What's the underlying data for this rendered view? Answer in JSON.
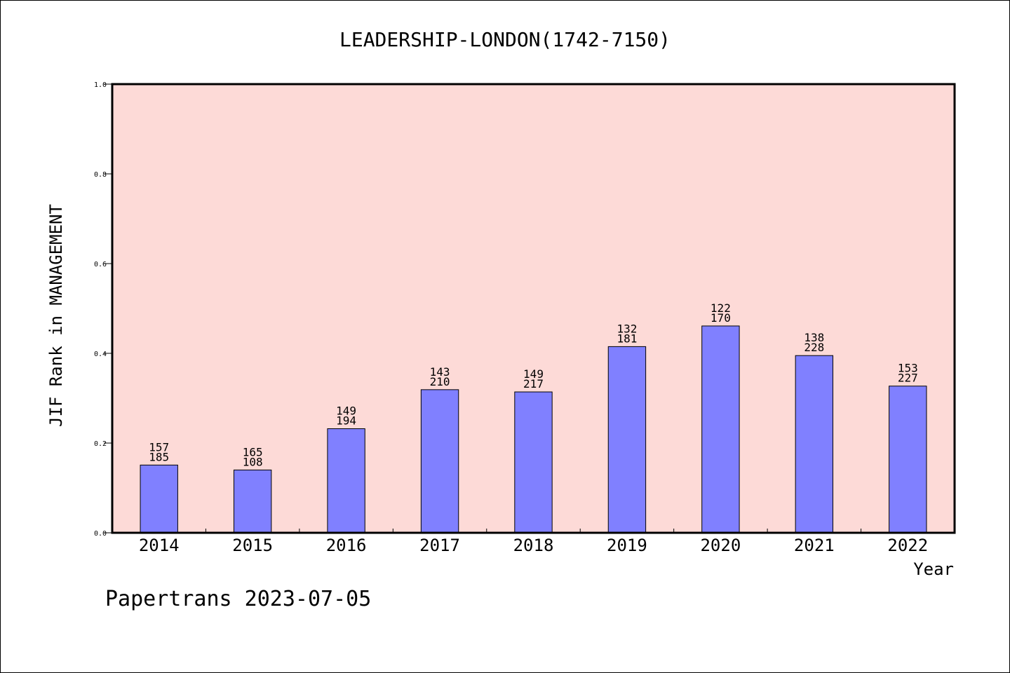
{
  "chart_data": {
    "type": "bar",
    "title": "LEADERSHIP-LONDON(1742-7150)",
    "xlabel": "Year",
    "ylabel": "JIF Rank in MANAGEMENT",
    "ylim": [
      0,
      1.0
    ],
    "yticks": [
      "0.0",
      "0.2",
      "0.4",
      "0.6",
      "0.8",
      "1.0"
    ],
    "categories": [
      "2014",
      "2015",
      "2016",
      "2017",
      "2018",
      "2019",
      "2020",
      "2021",
      "2022"
    ],
    "values": [
      0.151,
      0.14,
      0.232,
      0.319,
      0.314,
      0.415,
      0.461,
      0.395,
      0.327
    ],
    "rank_top": [
      "157",
      "165",
      "149",
      "143",
      "149",
      "132",
      "122",
      "138",
      "153"
    ],
    "rank_bottom": [
      "185",
      "108",
      "194",
      "210",
      "217",
      "181",
      "170",
      "228",
      "227"
    ],
    "colors": {
      "plot_background": "#fddad7",
      "bar_fill": "#8080ff",
      "bar_stroke": "#000000"
    },
    "grid": false,
    "legend": "none"
  },
  "footer": {
    "text": "Papertrans 2023-07-05"
  }
}
